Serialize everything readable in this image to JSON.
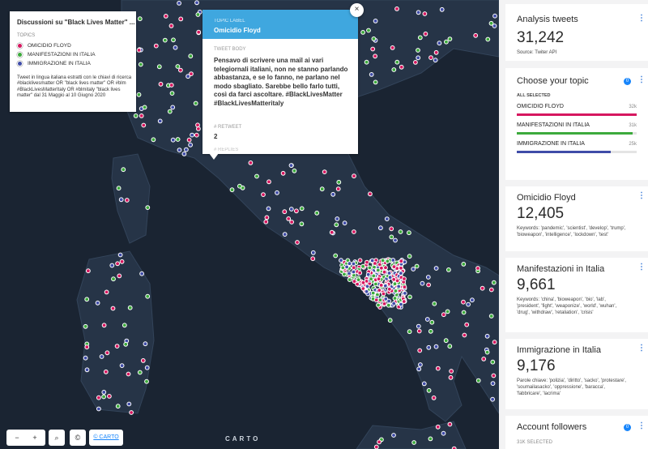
{
  "legend": {
    "title": "Discussioni su \"Black Lives Matter\" ...",
    "section": "TOPICS",
    "items": [
      "OMICIDIO FLOYD",
      "MANIFESTAZIONI IN ITALIA",
      "IMMIGRAZIONE IN ITALIA"
    ],
    "colors": [
      "#d6175f",
      "#3caa3c",
      "#3f4ca8"
    ],
    "description": "Tweet in lingua italiana estratti con le chiavi di ricerca #blacklivesmatter OR \"black lives matter\" OR #blm #BlackLivesMatterItaly OR #blmitaly \"black lives matter\" dal 31 Maggio al 10 Giugno 2020"
  },
  "popup": {
    "topic_label_heading": "TOPIC LABEL",
    "topic_label": "Omicidio Floyd",
    "tweet_body_heading": "TWEET BODY",
    "tweet_body": "Pensavo di scrivere una mail ai vari telegiornali italiani, non ne stanno parlando abbastanza, e se lo fanno, ne parlano nel modo sbagliato. Sarebbe bello farlo tutti, così da farci ascoltare. #BlackLivesMatter #BlackLivesMatteritaly",
    "retweet_heading": "# RETWEET",
    "retweet": "2",
    "replies_heading": "# REPLIES",
    "close": "×"
  },
  "map_controls": {
    "zoom_out": "−",
    "zoom_in": "+",
    "search": "⌕",
    "attribution": "©",
    "carto_link": "© CARTO",
    "logo": "CARTO"
  },
  "sidebar": {
    "summary": {
      "title": "Analysis tweets",
      "value": "31,242",
      "note": "Source: Twiter API"
    },
    "topics": {
      "title": "Choose your topic",
      "badge": "0",
      "status": "ALL SELECTED",
      "categories": [
        "OMICIDIO FLOYD",
        "MANIFESTAZIONI IN ITALIA",
        "IMMIGRAZIONE IN ITALIA"
      ],
      "values": [
        32000,
        31000,
        25000
      ],
      "value_labels": [
        "32k",
        "31k",
        "25k"
      ],
      "colors": [
        "#d6175f",
        "#3caa3c",
        "#3f4ca8"
      ]
    },
    "widgets": [
      {
        "title": "Omicidio Floyd",
        "value": "12,405",
        "keywords": "Keywords: 'pandemic', 'scientist', 'develop', 'trump', 'bioweapon', 'intelligence', 'lockdown', 'test'"
      },
      {
        "title": "Manifestazioni in Italia",
        "value": "9,661",
        "keywords": "Keywords: 'china', 'bioweapon', 'bio', 'lab', 'president', 'fight', 'weaponize', 'world', 'wuhan', 'drug', 'withdraw', 'retaliation', 'crisis'"
      },
      {
        "title": "Immigrazione in Italia",
        "value": "9,176",
        "keywords": "Parole chiave: 'polizia', 'diritto', 'sacko', 'protestare', 'soumailasacko', 'oppressione', 'baracca', 'fabbricare', 'lacrima'"
      }
    ],
    "followers": {
      "title": "Account followers",
      "badge": "0",
      "status": "31K SELECTED"
    }
  }
}
